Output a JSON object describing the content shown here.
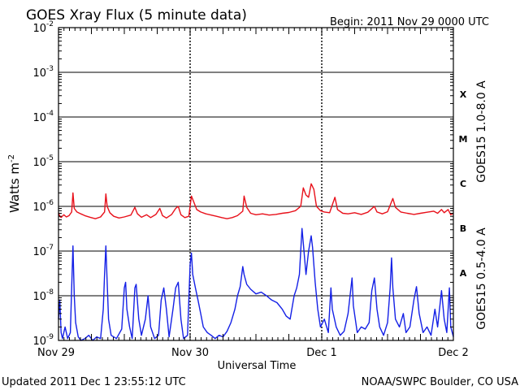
{
  "chart_data": {
    "type": "line",
    "title": "GOES Xray Flux (5 minute data)",
    "begin_label": "Begin:  2011 Nov 29 0000 UTC",
    "ylabel": "Watts m",
    "ylabel_sup": "-2",
    "xlabel": "Universal Time",
    "y_scale": "log",
    "ylim": [
      1e-09,
      0.01
    ],
    "xlim_days": [
      0,
      3
    ],
    "y_ticks": [
      {
        "base": "10",
        "exp": "-2",
        "value": 0.01
      },
      {
        "base": "10",
        "exp": "-3",
        "value": 0.001
      },
      {
        "base": "10",
        "exp": "-4",
        "value": 0.0001
      },
      {
        "base": "10",
        "exp": "-5",
        "value": 1e-05
      },
      {
        "base": "10",
        "exp": "-6",
        "value": 1e-06
      },
      {
        "base": "10",
        "exp": "-7",
        "value": 1e-07
      },
      {
        "base": "10",
        "exp": "-8",
        "value": 1e-08
      },
      {
        "base": "10",
        "exp": "-9",
        "value": 1e-09
      }
    ],
    "x_ticks": [
      {
        "label": "Nov 29",
        "day": 0
      },
      {
        "label": "Nov 30",
        "day": 1
      },
      {
        "label": "Dec 1",
        "day": 2
      },
      {
        "label": "Dec 2",
        "day": 3
      }
    ],
    "flare_classes": [
      {
        "label": "X",
        "value": 0.00032
      },
      {
        "label": "M",
        "value": 3.2e-05
      },
      {
        "label": "C",
        "value": 3.2e-06
      },
      {
        "label": "B",
        "value": 3.2e-07
      },
      {
        "label": "A",
        "value": 3.2e-08
      }
    ],
    "series": [
      {
        "name": "GOES15 1.0-8.0 A",
        "color": "#e8101a",
        "points": [
          [
            0.0,
            7.2e-07
          ],
          [
            0.01,
            6e-07
          ],
          [
            0.02,
            5.6e-07
          ],
          [
            0.04,
            6.5e-07
          ],
          [
            0.06,
            5.8e-07
          ],
          [
            0.08,
            6.2e-07
          ],
          [
            0.1,
            7.5e-07
          ],
          [
            0.11,
            2e-06
          ],
          [
            0.12,
            9e-07
          ],
          [
            0.14,
            7.5e-07
          ],
          [
            0.17,
            6.8e-07
          ],
          [
            0.2,
            6.2e-07
          ],
          [
            0.24,
            5.7e-07
          ],
          [
            0.28,
            5.3e-07
          ],
          [
            0.32,
            5.8e-07
          ],
          [
            0.35,
            7.5e-07
          ],
          [
            0.36,
            1.9e-06
          ],
          [
            0.37,
            1e-06
          ],
          [
            0.39,
            7.2e-07
          ],
          [
            0.42,
            6e-07
          ],
          [
            0.46,
            5.5e-07
          ],
          [
            0.5,
            5.8e-07
          ],
          [
            0.55,
            6.4e-07
          ],
          [
            0.58,
            9.5e-07
          ],
          [
            0.6,
            6.8e-07
          ],
          [
            0.63,
            5.7e-07
          ],
          [
            0.67,
            6.5e-07
          ],
          [
            0.7,
            5.6e-07
          ],
          [
            0.74,
            6.6e-07
          ],
          [
            0.77,
            9e-07
          ],
          [
            0.79,
            6.2e-07
          ],
          [
            0.82,
            5.5e-07
          ],
          [
            0.86,
            6.6e-07
          ],
          [
            0.89,
            9e-07
          ],
          [
            0.91,
            1e-06
          ],
          [
            0.93,
            6.5e-07
          ],
          [
            0.96,
            5.6e-07
          ],
          [
            0.99,
            6e-07
          ],
          [
            1.01,
            1.7e-06
          ],
          [
            1.03,
            1.2e-06
          ],
          [
            1.05,
            8.5e-07
          ],
          [
            1.08,
            7.5e-07
          ],
          [
            1.12,
            6.8e-07
          ],
          [
            1.16,
            6.4e-07
          ],
          [
            1.2,
            6e-07
          ],
          [
            1.24,
            5.6e-07
          ],
          [
            1.28,
            5.3e-07
          ],
          [
            1.32,
            5.6e-07
          ],
          [
            1.36,
            6.2e-07
          ],
          [
            1.4,
            7.8e-07
          ],
          [
            1.41,
            1.7e-06
          ],
          [
            1.43,
            9.5e-07
          ],
          [
            1.46,
            7e-07
          ],
          [
            1.5,
            6.5e-07
          ],
          [
            1.55,
            6.8e-07
          ],
          [
            1.6,
            6.4e-07
          ],
          [
            1.65,
            6.6e-07
          ],
          [
            1.7,
            7e-07
          ],
          [
            1.75,
            7.3e-07
          ],
          [
            1.8,
            8e-07
          ],
          [
            1.84,
            1e-06
          ],
          [
            1.86,
            2.6e-06
          ],
          [
            1.88,
            1.8e-06
          ],
          [
            1.9,
            1.6e-06
          ],
          [
            1.92,
            3.2e-06
          ],
          [
            1.94,
            2.4e-06
          ],
          [
            1.96,
            1e-06
          ],
          [
            1.99,
            8e-07
          ],
          [
            2.02,
            7.5e-07
          ],
          [
            2.06,
            7.2e-07
          ],
          [
            2.1,
            1.6e-06
          ],
          [
            2.12,
            8.5e-07
          ],
          [
            2.16,
            7e-07
          ],
          [
            2.2,
            6.8e-07
          ],
          [
            2.25,
            7.2e-07
          ],
          [
            2.3,
            6.6e-07
          ],
          [
            2.35,
            7.4e-07
          ],
          [
            2.4,
            1e-06
          ],
          [
            2.42,
            7.5e-07
          ],
          [
            2.46,
            6.8e-07
          ],
          [
            2.5,
            7.6e-07
          ],
          [
            2.54,
            1.5e-06
          ],
          [
            2.56,
            9.5e-07
          ],
          [
            2.6,
            7.5e-07
          ],
          [
            2.65,
            7e-07
          ],
          [
            2.7,
            6.6e-07
          ],
          [
            2.75,
            7e-07
          ],
          [
            2.8,
            7.4e-07
          ],
          [
            2.85,
            7.8e-07
          ],
          [
            2.88,
            7e-07
          ],
          [
            2.91,
            8.5e-07
          ],
          [
            2.93,
            7.2e-07
          ],
          [
            2.96,
            8.5e-07
          ],
          [
            2.98,
            6.5e-07
          ],
          [
            3.0,
            7e-07
          ]
        ]
      },
      {
        "name": "GOES15 0.5-4.0 A",
        "color": "#1420e6",
        "points": [
          [
            0.0,
            3e-09
          ],
          [
            0.01,
            8e-09
          ],
          [
            0.02,
            1.5e-09
          ],
          [
            0.03,
            1.1e-09
          ],
          [
            0.05,
            2e-09
          ],
          [
            0.07,
            1.1e-09
          ],
          [
            0.09,
            1.5e-09
          ],
          [
            0.1,
            1.5e-08
          ],
          [
            0.11,
            1.3e-07
          ],
          [
            0.12,
            1e-08
          ],
          [
            0.13,
            2.5e-09
          ],
          [
            0.15,
            1.2e-09
          ],
          [
            0.17,
            1e-09
          ],
          [
            0.2,
            1.1e-09
          ],
          [
            0.23,
            1.3e-09
          ],
          [
            0.26,
            1e-09
          ],
          [
            0.29,
            1.2e-09
          ],
          [
            0.32,
            1.1e-09
          ],
          [
            0.34,
            5e-09
          ],
          [
            0.35,
            3e-08
          ],
          [
            0.36,
            1.3e-07
          ],
          [
            0.37,
            2e-08
          ],
          [
            0.38,
            3e-09
          ],
          [
            0.4,
            1.3e-09
          ],
          [
            0.44,
            1.1e-09
          ],
          [
            0.48,
            1.8e-09
          ],
          [
            0.5,
            1.5e-08
          ],
          [
            0.51,
            2e-08
          ],
          [
            0.52,
            5e-09
          ],
          [
            0.54,
            2e-09
          ],
          [
            0.56,
            1.1e-09
          ],
          [
            0.58,
            1.5e-08
          ],
          [
            0.59,
            1.8e-08
          ],
          [
            0.61,
            3e-09
          ],
          [
            0.63,
            1.3e-09
          ],
          [
            0.66,
            3e-09
          ],
          [
            0.68,
            1e-08
          ],
          [
            0.7,
            2e-09
          ],
          [
            0.73,
            1.1e-09
          ],
          [
            0.76,
            1.3e-09
          ],
          [
            0.78,
            8e-09
          ],
          [
            0.8,
            1.5e-08
          ],
          [
            0.82,
            5e-09
          ],
          [
            0.84,
            1.2e-09
          ],
          [
            0.87,
            5e-09
          ],
          [
            0.89,
            1.5e-08
          ],
          [
            0.91,
            2e-08
          ],
          [
            0.93,
            3e-09
          ],
          [
            0.95,
            1.1e-09
          ],
          [
            0.98,
            1.3e-09
          ],
          [
            1.0,
            5e-08
          ],
          [
            1.01,
            9e-08
          ],
          [
            1.02,
            3e-08
          ],
          [
            1.04,
            1.5e-08
          ],
          [
            1.06,
            8e-09
          ],
          [
            1.08,
            4e-09
          ],
          [
            1.1,
            2e-09
          ],
          [
            1.13,
            1.5e-09
          ],
          [
            1.16,
            1.3e-09
          ],
          [
            1.19,
            1.1e-09
          ],
          [
            1.22,
            1.3e-09
          ],
          [
            1.25,
            1.2e-09
          ],
          [
            1.28,
            1.6e-09
          ],
          [
            1.31,
            2.5e-09
          ],
          [
            1.34,
            5e-09
          ],
          [
            1.36,
            1e-08
          ],
          [
            1.38,
            1.6e-08
          ],
          [
            1.4,
            4.5e-08
          ],
          [
            1.41,
            3e-08
          ],
          [
            1.43,
            1.8e-08
          ],
          [
            1.46,
            1.4e-08
          ],
          [
            1.5,
            1.1e-08
          ],
          [
            1.54,
            1.2e-08
          ],
          [
            1.58,
            1e-08
          ],
          [
            1.62,
            8e-09
          ],
          [
            1.66,
            7e-09
          ],
          [
            1.7,
            5e-09
          ],
          [
            1.73,
            3.5e-09
          ],
          [
            1.76,
            3e-09
          ],
          [
            1.79,
            1e-08
          ],
          [
            1.81,
            1.5e-08
          ],
          [
            1.83,
            3e-08
          ],
          [
            1.85,
            3.2e-07
          ],
          [
            1.86,
            1.5e-07
          ],
          [
            1.88,
            3e-08
          ],
          [
            1.9,
            1e-07
          ],
          [
            1.92,
            2.2e-07
          ],
          [
            1.93,
            1.2e-07
          ],
          [
            1.95,
            2e-08
          ],
          [
            1.97,
            5e-09
          ],
          [
            1.99,
            2e-09
          ],
          [
            2.02,
            3e-09
          ],
          [
            2.05,
            1.5e-09
          ],
          [
            2.07,
            1.5e-08
          ],
          [
            2.08,
            5e-09
          ],
          [
            2.11,
            2e-09
          ],
          [
            2.14,
            1.3e-09
          ],
          [
            2.17,
            1.6e-09
          ],
          [
            2.2,
            4e-09
          ],
          [
            2.23,
            2.5e-08
          ],
          [
            2.24,
            6e-09
          ],
          [
            2.27,
            1.5e-09
          ],
          [
            2.3,
            2e-09
          ],
          [
            2.33,
            1.8e-09
          ],
          [
            2.36,
            2.5e-09
          ],
          [
            2.38,
            1.3e-08
          ],
          [
            2.4,
            2.5e-08
          ],
          [
            2.42,
            5e-09
          ],
          [
            2.44,
            2e-09
          ],
          [
            2.47,
            1.3e-09
          ],
          [
            2.5,
            2.5e-09
          ],
          [
            2.52,
            1.5e-08
          ],
          [
            2.53,
            7e-08
          ],
          [
            2.54,
            1.5e-08
          ],
          [
            2.56,
            3e-09
          ],
          [
            2.59,
            2e-09
          ],
          [
            2.62,
            4e-09
          ],
          [
            2.64,
            1.5e-09
          ],
          [
            2.67,
            2e-09
          ],
          [
            2.7,
            8e-09
          ],
          [
            2.72,
            1.6e-08
          ],
          [
            2.74,
            4e-09
          ],
          [
            2.77,
            1.5e-09
          ],
          [
            2.8,
            2e-09
          ],
          [
            2.83,
            1.3e-09
          ],
          [
            2.86,
            5e-09
          ],
          [
            2.88,
            2e-09
          ],
          [
            2.91,
            1.3e-08
          ],
          [
            2.93,
            3e-09
          ],
          [
            2.95,
            1.5e-09
          ],
          [
            2.97,
            1.5e-08
          ],
          [
            2.98,
            2e-09
          ],
          [
            3.0,
            1.2e-09
          ]
        ]
      }
    ]
  },
  "footer": {
    "updated": "Updated 2011 Dec  1 23:55:12 UTC",
    "credit": "NOAA/SWPC Boulder, CO USA"
  }
}
